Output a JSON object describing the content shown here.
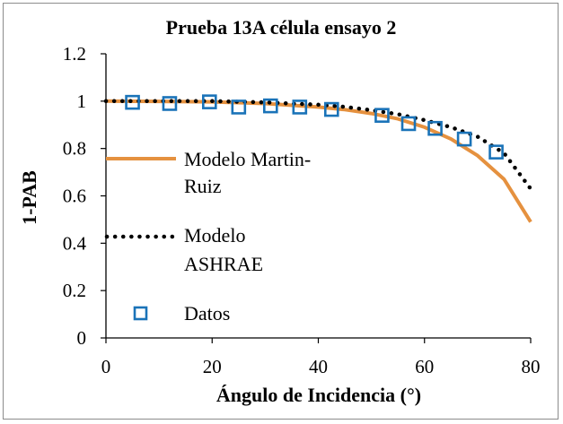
{
  "chart_data": {
    "type": "line",
    "title": "Prueba 13A célula ensayo 2",
    "xlabel": "Ángulo de Incidencia (°)",
    "ylabel": "1-PAB",
    "xlim": [
      0,
      80
    ],
    "ylim": [
      0,
      1.2
    ],
    "xticks": [
      "0",
      "20",
      "40",
      "60",
      "80"
    ],
    "yticks": [
      "0",
      "0.2",
      "0.4",
      "0.6",
      "0.8",
      "1",
      "1.2"
    ],
    "series": [
      {
        "name": "Modelo Martin-Ruiz",
        "style": "solid",
        "color": "#e5913f",
        "x": [
          0,
          10,
          20,
          30,
          40,
          45,
          50,
          55,
          60,
          65,
          70,
          75,
          80
        ],
        "y": [
          1.0,
          0.999,
          0.997,
          0.99,
          0.975,
          0.964,
          0.948,
          0.925,
          0.89,
          0.84,
          0.77,
          0.67,
          0.49
        ]
      },
      {
        "name": "Modelo ASHRAE",
        "style": "dotted",
        "color": "#000000",
        "x": [
          0,
          10,
          20,
          30,
          40,
          45,
          50,
          55,
          60,
          65,
          70,
          75,
          80
        ],
        "y": [
          1.0,
          1.0,
          1.0,
          0.995,
          0.985,
          0.976,
          0.962,
          0.945,
          0.92,
          0.89,
          0.85,
          0.78,
          0.63
        ]
      },
      {
        "name": "Datos",
        "style": "markers",
        "color": "#1a73b8",
        "x": [
          5,
          12,
          19.5,
          25,
          31,
          36.5,
          42.5,
          52,
          57,
          62,
          67.5,
          73.5
        ],
        "y": [
          0.995,
          0.99,
          0.997,
          0.975,
          0.98,
          0.975,
          0.965,
          0.94,
          0.905,
          0.885,
          0.84,
          0.785
        ]
      }
    ],
    "legend": [
      {
        "label_lines": [
          "Modelo Martin-",
          "Ruiz"
        ],
        "series": 0
      },
      {
        "label_lines": [
          "Modelo",
          "ASHRAE"
        ],
        "series": 1
      },
      {
        "label_lines": [
          "Datos"
        ],
        "series": 2
      }
    ]
  }
}
